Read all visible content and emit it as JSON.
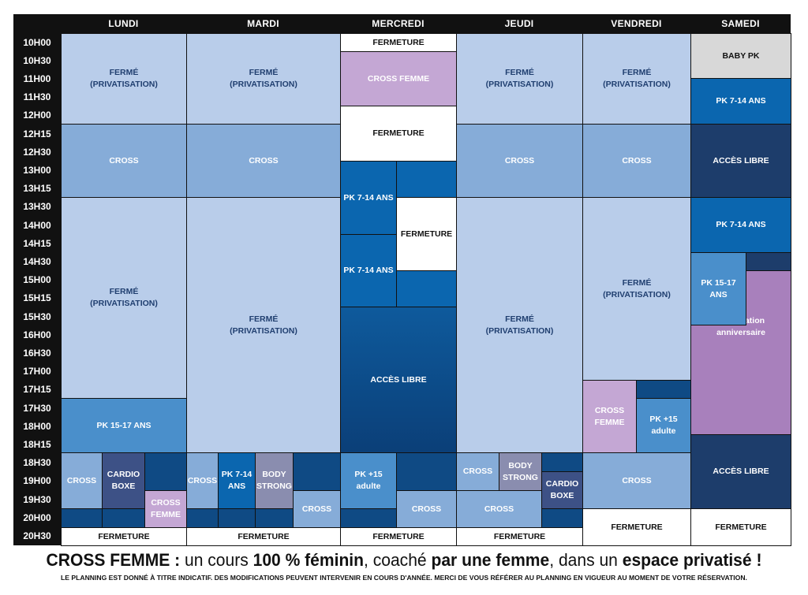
{
  "days": [
    "LUNDI",
    "MARDI",
    "MERCREDI",
    "JEUDI",
    "VENDREDI",
    "SAMEDI"
  ],
  "times": [
    "10H00",
    "10H30",
    "11H00",
    "11H30",
    "12H00",
    "12H15",
    "12H30",
    "13H00",
    "13H15",
    "13H30",
    "14H00",
    "14H15",
    "14H30",
    "15H00",
    "15H15",
    "15H30",
    "16H00",
    "16H30",
    "17H00",
    "17H15",
    "17H30",
    "18H00",
    "18H15",
    "18H30",
    "19H00",
    "19H30",
    "20H00",
    "20H30"
  ],
  "blocks": [
    {
      "label": "FERMÉ\n(PRIVATISATION)",
      "type": "ferme"
    },
    {
      "label": "CROSS",
      "type": "cross"
    },
    {
      "label": "FERMÉ\n(PRIVATISATION)",
      "type": "ferme"
    },
    {
      "label": "PK 15-17 ANS",
      "type": "pk1517"
    },
    {
      "label": "CROSS",
      "type": "cross"
    },
    {
      "label": "CARDIO\nBOXE",
      "type": "cardio"
    },
    {
      "label": "",
      "type": "dark"
    },
    {
      "label": "CROSS\nFEMME",
      "type": "femme"
    },
    {
      "label": "",
      "type": "dark"
    },
    {
      "label": "",
      "type": "dark"
    },
    {
      "label": "FERMETURE",
      "type": "white"
    },
    {
      "label": "FERMÉ\n(PRIVATISATION)",
      "type": "ferme"
    },
    {
      "label": "CROSS",
      "type": "cross"
    },
    {
      "label": "FERMÉ\n(PRIVATISATION)",
      "type": "ferme"
    },
    {
      "label": "CROSS",
      "type": "cross"
    },
    {
      "label": "PK 7-14\nANS",
      "type": "pk714"
    },
    {
      "label": "BODY\nSTRONG",
      "type": "body"
    },
    {
      "label": "",
      "type": "dark"
    },
    {
      "label": "CROSS",
      "type": "cross"
    },
    {
      "label": "",
      "type": "dark"
    },
    {
      "label": "",
      "type": "dark"
    },
    {
      "label": "",
      "type": "dark"
    },
    {
      "label": "FERMETURE",
      "type": "white"
    },
    {
      "label": "FERMETURE",
      "type": "white"
    },
    {
      "label": "CROSS FEMME",
      "type": "femme"
    },
    {
      "label": "FERMETURE",
      "type": "white"
    },
    {
      "label": "PK 7-14 ANS",
      "type": "pk714"
    },
    {
      "label": "",
      "type": "pk714"
    },
    {
      "label": "FERMETURE",
      "type": "white"
    },
    {
      "label": "PK 7-14 ANS",
      "type": "pk714"
    },
    {
      "label": "",
      "type": "pk714"
    },
    {
      "label": "ACCÈS LIBRE",
      "type": "acces"
    },
    {
      "label": "PK +15\nadulte",
      "type": "pk1517"
    },
    {
      "label": "",
      "type": "dark"
    },
    {
      "label": "CROSS",
      "type": "cross"
    },
    {
      "label": "",
      "type": "dark"
    },
    {
      "label": "FERMETURE",
      "type": "white"
    },
    {
      "label": "FERMÉ\n(PRIVATISATION)",
      "type": "ferme"
    },
    {
      "label": "CROSS",
      "type": "cross"
    },
    {
      "label": "FERMÉ\n(PRIVATISATION)",
      "type": "ferme"
    },
    {
      "label": "CROSS",
      "type": "cross"
    },
    {
      "label": "BODY\nSTRONG",
      "type": "body"
    },
    {
      "label": "",
      "type": "dark"
    },
    {
      "label": "CARDIO\nBOXE",
      "type": "cardio"
    },
    {
      "label": "CROSS",
      "type": "cross"
    },
    {
      "label": "",
      "type": "dark"
    },
    {
      "label": "FERMETURE",
      "type": "white"
    },
    {
      "label": "FERMÉ\n(PRIVATISATION)",
      "type": "ferme"
    },
    {
      "label": "CROSS",
      "type": "cross"
    },
    {
      "label": "FERMÉ\n(PRIVATISATION)",
      "type": "ferme"
    },
    {
      "label": "CROSS\nFEMME",
      "type": "femme"
    },
    {
      "label": "",
      "type": "dark"
    },
    {
      "label": "PK +15\nadulte",
      "type": "pk1517"
    },
    {
      "label": "CROSS",
      "type": "cross"
    },
    {
      "label": "FERMETURE",
      "type": "white"
    },
    {
      "label": "BABY PK",
      "type": "grey"
    },
    {
      "label": "PK 7-14 ANS",
      "type": "pk714"
    },
    {
      "label": "ACCÈS LIBRE",
      "type": "navy"
    },
    {
      "label": "PK 7-14 ANS",
      "type": "pk714"
    },
    {
      "label": "Réservation\nanniversaire",
      "type": "resa"
    },
    {
      "label": "PK 15-17\nANS",
      "type": "pk1517"
    },
    {
      "label": "",
      "type": "navy"
    },
    {
      "label": "ACCÈS LIBRE",
      "type": "navy"
    },
    {
      "label": "FERMETURE",
      "type": "white"
    }
  ],
  "colors": {
    "closed_light_blue": "#b9cdea",
    "cross": "#86acd8",
    "pk_7_14": "#0b66af",
    "pk_15_17": "#4a8fcb",
    "cardio_boxe": "#3d5186",
    "body_strong": "#8a8daf",
    "cross_femme": "#c4a7d4",
    "reservation": "#a880bc",
    "baby_pk": "#d8d8d8",
    "acces_libre": "#0e4f8c",
    "dark_slot": "#0f4a84"
  },
  "footer": {
    "tagline": [
      {
        "text": "CROSS FEMME :",
        "bold": true
      },
      {
        "text": " un cours ",
        "bold": false
      },
      {
        "text": "100 % féminin",
        "bold": true
      },
      {
        "text": ", coaché ",
        "bold": false
      },
      {
        "text": "par une femme",
        "bold": true
      },
      {
        "text": ", dans un ",
        "bold": false
      },
      {
        "text": "espace privatisé !",
        "bold": true
      }
    ],
    "disclaimer": "LE PLANNING EST DONNÉ À TITRE INDICATIF. DES MODIFICATIONS PEUVENT INTERVENIR EN COURS D'ANNÉE. MERCI DE VOUS RÉFÉRER AU PLANNING EN VIGUEUR AU MOMENT DE VOTRE RÉSERVATION."
  }
}
